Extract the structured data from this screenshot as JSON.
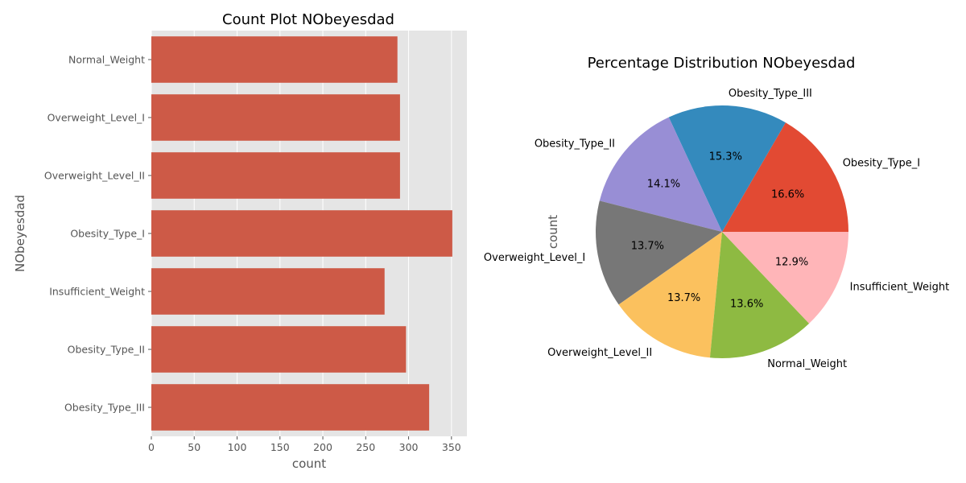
{
  "chart_data": [
    {
      "type": "bar",
      "orientation": "horizontal",
      "title": "Count Plot NObeyesdad",
      "xlabel": "count",
      "ylabel": "NObeyesdad",
      "categories": [
        "Normal_Weight",
        "Overweight_Level_I",
        "Overweight_Level_II",
        "Obesity_Type_I",
        "Insufficient_Weight",
        "Obesity_Type_II",
        "Obesity_Type_III"
      ],
      "values": [
        287,
        290,
        290,
        351,
        272,
        297,
        324
      ],
      "xlim": [
        0,
        368
      ],
      "xticks": [
        "0",
        "50",
        "100",
        "150",
        "200",
        "250",
        "300",
        "350"
      ],
      "grid": true,
      "bar_color": "#cd5a47",
      "background_color": "#e5e5e5"
    },
    {
      "type": "pie",
      "title": "Percentage Distribution NObeyesdad",
      "ylabel": "count",
      "labels": [
        "Obesity_Type_I",
        "Obesity_Type_III",
        "Obesity_Type_II",
        "Overweight_Level_I",
        "Overweight_Level_II",
        "Normal_Weight",
        "Insufficient_Weight"
      ],
      "values": [
        16.6,
        15.3,
        14.1,
        13.7,
        13.7,
        13.6,
        12.9
      ],
      "pct_labels": [
        "16.6%",
        "15.3%",
        "14.1%",
        "13.7%",
        "13.7%",
        "13.6%",
        "12.9%"
      ],
      "colors": [
        "#e24a33",
        "#348abd",
        "#988ed5",
        "#777777",
        "#fbc15e",
        "#8eba42",
        "#ffb5b8"
      ],
      "start_angle": 0,
      "direction": "counterclockwise"
    }
  ]
}
